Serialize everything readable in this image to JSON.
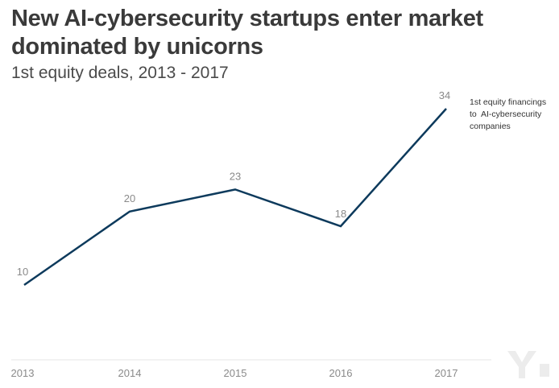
{
  "title": "New AI-cybersecurity startups enter market dominated by unicorns",
  "subtitle": "1st equity deals, 2013 - 2017",
  "chart_data": {
    "type": "line",
    "title": "New AI-cybersecurity startups enter market dominated by unicorns",
    "subtitle": "1st equity deals, 2013 - 2017",
    "x": [
      "2013",
      "2014",
      "2015",
      "2016",
      "2017"
    ],
    "series": [
      {
        "name": "1st equity financings to AI-cybersecurity companies",
        "values": [
          10,
          20,
          23,
          18,
          34
        ],
        "color": "#0d3a5c"
      }
    ],
    "legend_lines": [
      "1st equity financings",
      "to  AI-cybersecurity",
      "companies"
    ],
    "legend_placement": "right of last point",
    "grid": false,
    "colors": {
      "line": "#0d3a5c",
      "data_label": "#8a8a8a",
      "tick_label": "#8a8a8a",
      "axis": "#e6e6e6"
    }
  }
}
